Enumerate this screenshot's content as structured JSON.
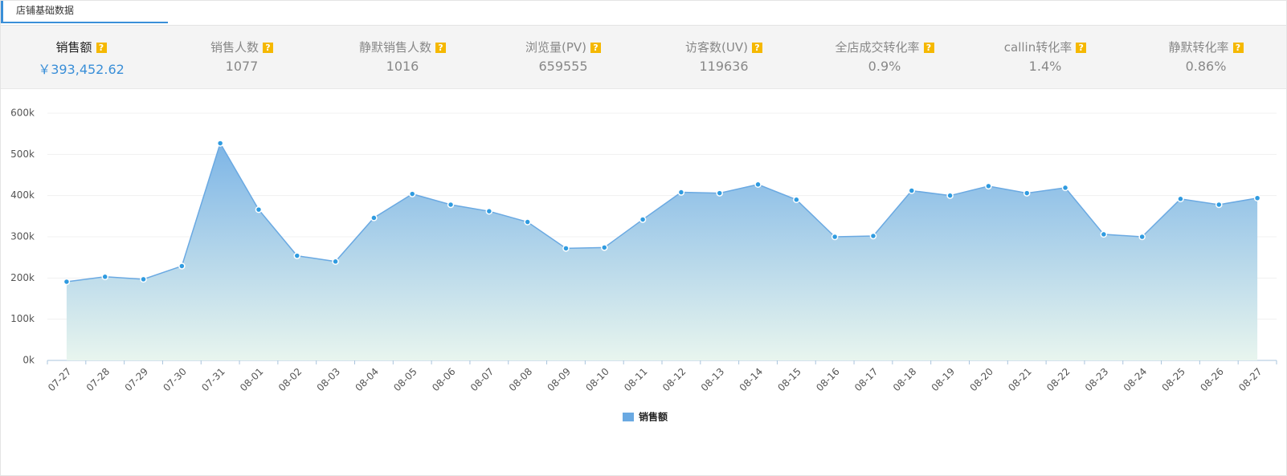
{
  "tab": "店铺基础数据",
  "help_icon": "?",
  "metrics": [
    {
      "label": "销售额",
      "value": "￥393,452.62"
    },
    {
      "label": "销售人数",
      "value": "1077"
    },
    {
      "label": "静默销售人数",
      "value": "1016"
    },
    {
      "label": "浏览量(PV)",
      "value": "659555"
    },
    {
      "label": "访客数(UV)",
      "value": "119636"
    },
    {
      "label": "全店成交转化率",
      "value": "0.9%"
    },
    {
      "label": "callin转化率",
      "value": "1.4%"
    },
    {
      "label": "静默转化率",
      "value": "0.86%"
    }
  ],
  "chart_data": {
    "type": "area",
    "categories": [
      "07-27",
      "07-28",
      "07-29",
      "07-30",
      "07-31",
      "08-01",
      "08-02",
      "08-03",
      "08-04",
      "08-05",
      "08-06",
      "08-07",
      "08-08",
      "08-09",
      "08-10",
      "08-11",
      "08-12",
      "08-13",
      "08-14",
      "08-15",
      "08-16",
      "08-17",
      "08-18",
      "08-19",
      "08-20",
      "08-21",
      "08-22",
      "08-23",
      "08-24",
      "08-25",
      "08-26",
      "08-27"
    ],
    "series": [
      {
        "name": "销售额",
        "color": "#6aa9e2",
        "values": [
          191000,
          203000,
          197000,
          229000,
          527000,
          366000,
          254000,
          240000,
          346000,
          404000,
          378000,
          362000,
          336000,
          272000,
          274000,
          342000,
          408000,
          406000,
          427000,
          390000,
          300000,
          302000,
          412000,
          400000,
          423000,
          406000,
          419000,
          306000,
          300000,
          392000,
          378000,
          394000
        ]
      }
    ],
    "ylim": [
      0,
      600000
    ],
    "yticks": [
      {
        "value": 0,
        "label": "0k"
      },
      {
        "value": 100000,
        "label": "100k"
      },
      {
        "value": 200000,
        "label": "200k"
      },
      {
        "value": 300000,
        "label": "300k"
      },
      {
        "value": 400000,
        "label": "400k"
      },
      {
        "value": 500000,
        "label": "500k"
      },
      {
        "value": 600000,
        "label": "600k"
      }
    ],
    "grid": true
  }
}
